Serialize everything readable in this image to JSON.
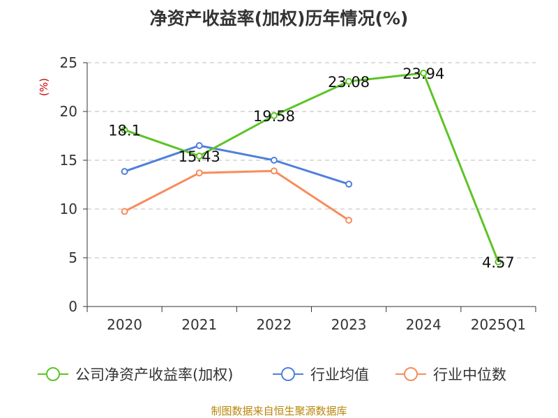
{
  "chart_data": {
    "type": "line",
    "title": "净资产收益率(加权)历年情况(%)",
    "ylabel": "(%)",
    "xlabel": "",
    "categories": [
      "2020",
      "2021",
      "2022",
      "2023",
      "2024",
      "2025Q1"
    ],
    "ylim": [
      0,
      25
    ],
    "yticks": [
      "0",
      "5",
      "10",
      "15",
      "20",
      "25"
    ],
    "grid": "horizontal dashed",
    "legend_position": "bottom",
    "series": [
      {
        "name": "公司净资产收益率(加权)",
        "color": "#5cc424",
        "values": [
          18.1,
          15.43,
          19.58,
          23.08,
          23.94,
          4.57
        ],
        "labels": [
          "18.1",
          "15.43",
          "19.58",
          "23.08",
          "23.94",
          "4.57"
        ]
      },
      {
        "name": "行业均值",
        "color": "#4f7fdb",
        "values": [
          13.85,
          16.5,
          15.0,
          12.55,
          null,
          null
        ]
      },
      {
        "name": "行业中位数",
        "color": "#f78c5a",
        "values": [
          9.75,
          13.7,
          13.9,
          8.85,
          null,
          null
        ]
      }
    ]
  },
  "source": "制图数据来自恒生聚源数据库"
}
